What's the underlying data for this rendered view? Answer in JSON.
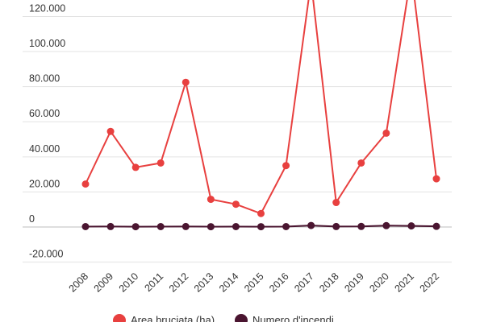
{
  "chart_data": {
    "type": "line",
    "categories": [
      "2008",
      "2009",
      "2010",
      "2011",
      "2012",
      "2013",
      "2014",
      "2015",
      "2016",
      "2017",
      "2018",
      "2019",
      "2020",
      "2021",
      "2022"
    ],
    "series": [
      {
        "name": "Area bruciata (ha)",
        "color": "#e8403f",
        "values": [
          24500,
          54500,
          34000,
          36500,
          82500,
          15800,
          13000,
          7700,
          35000,
          140000,
          14000,
          36500,
          53500,
          145000,
          27500
        ]
      },
      {
        "name": "Numero d'incendi",
        "color": "#4a1530",
        "values": [
          250,
          300,
          200,
          250,
          300,
          200,
          250,
          200,
          250,
          900,
          300,
          350,
          800,
          650,
          400
        ]
      }
    ],
    "yticks": [
      "-20.000",
      "0",
      "20.000",
      "40.000",
      "60.000",
      "80.000",
      "100.000",
      "120.000"
    ],
    "ylim": [
      -22000,
      128000
    ],
    "grid": true,
    "legend_position": "bottom",
    "xlabel": "",
    "ylabel": "",
    "title": ""
  }
}
